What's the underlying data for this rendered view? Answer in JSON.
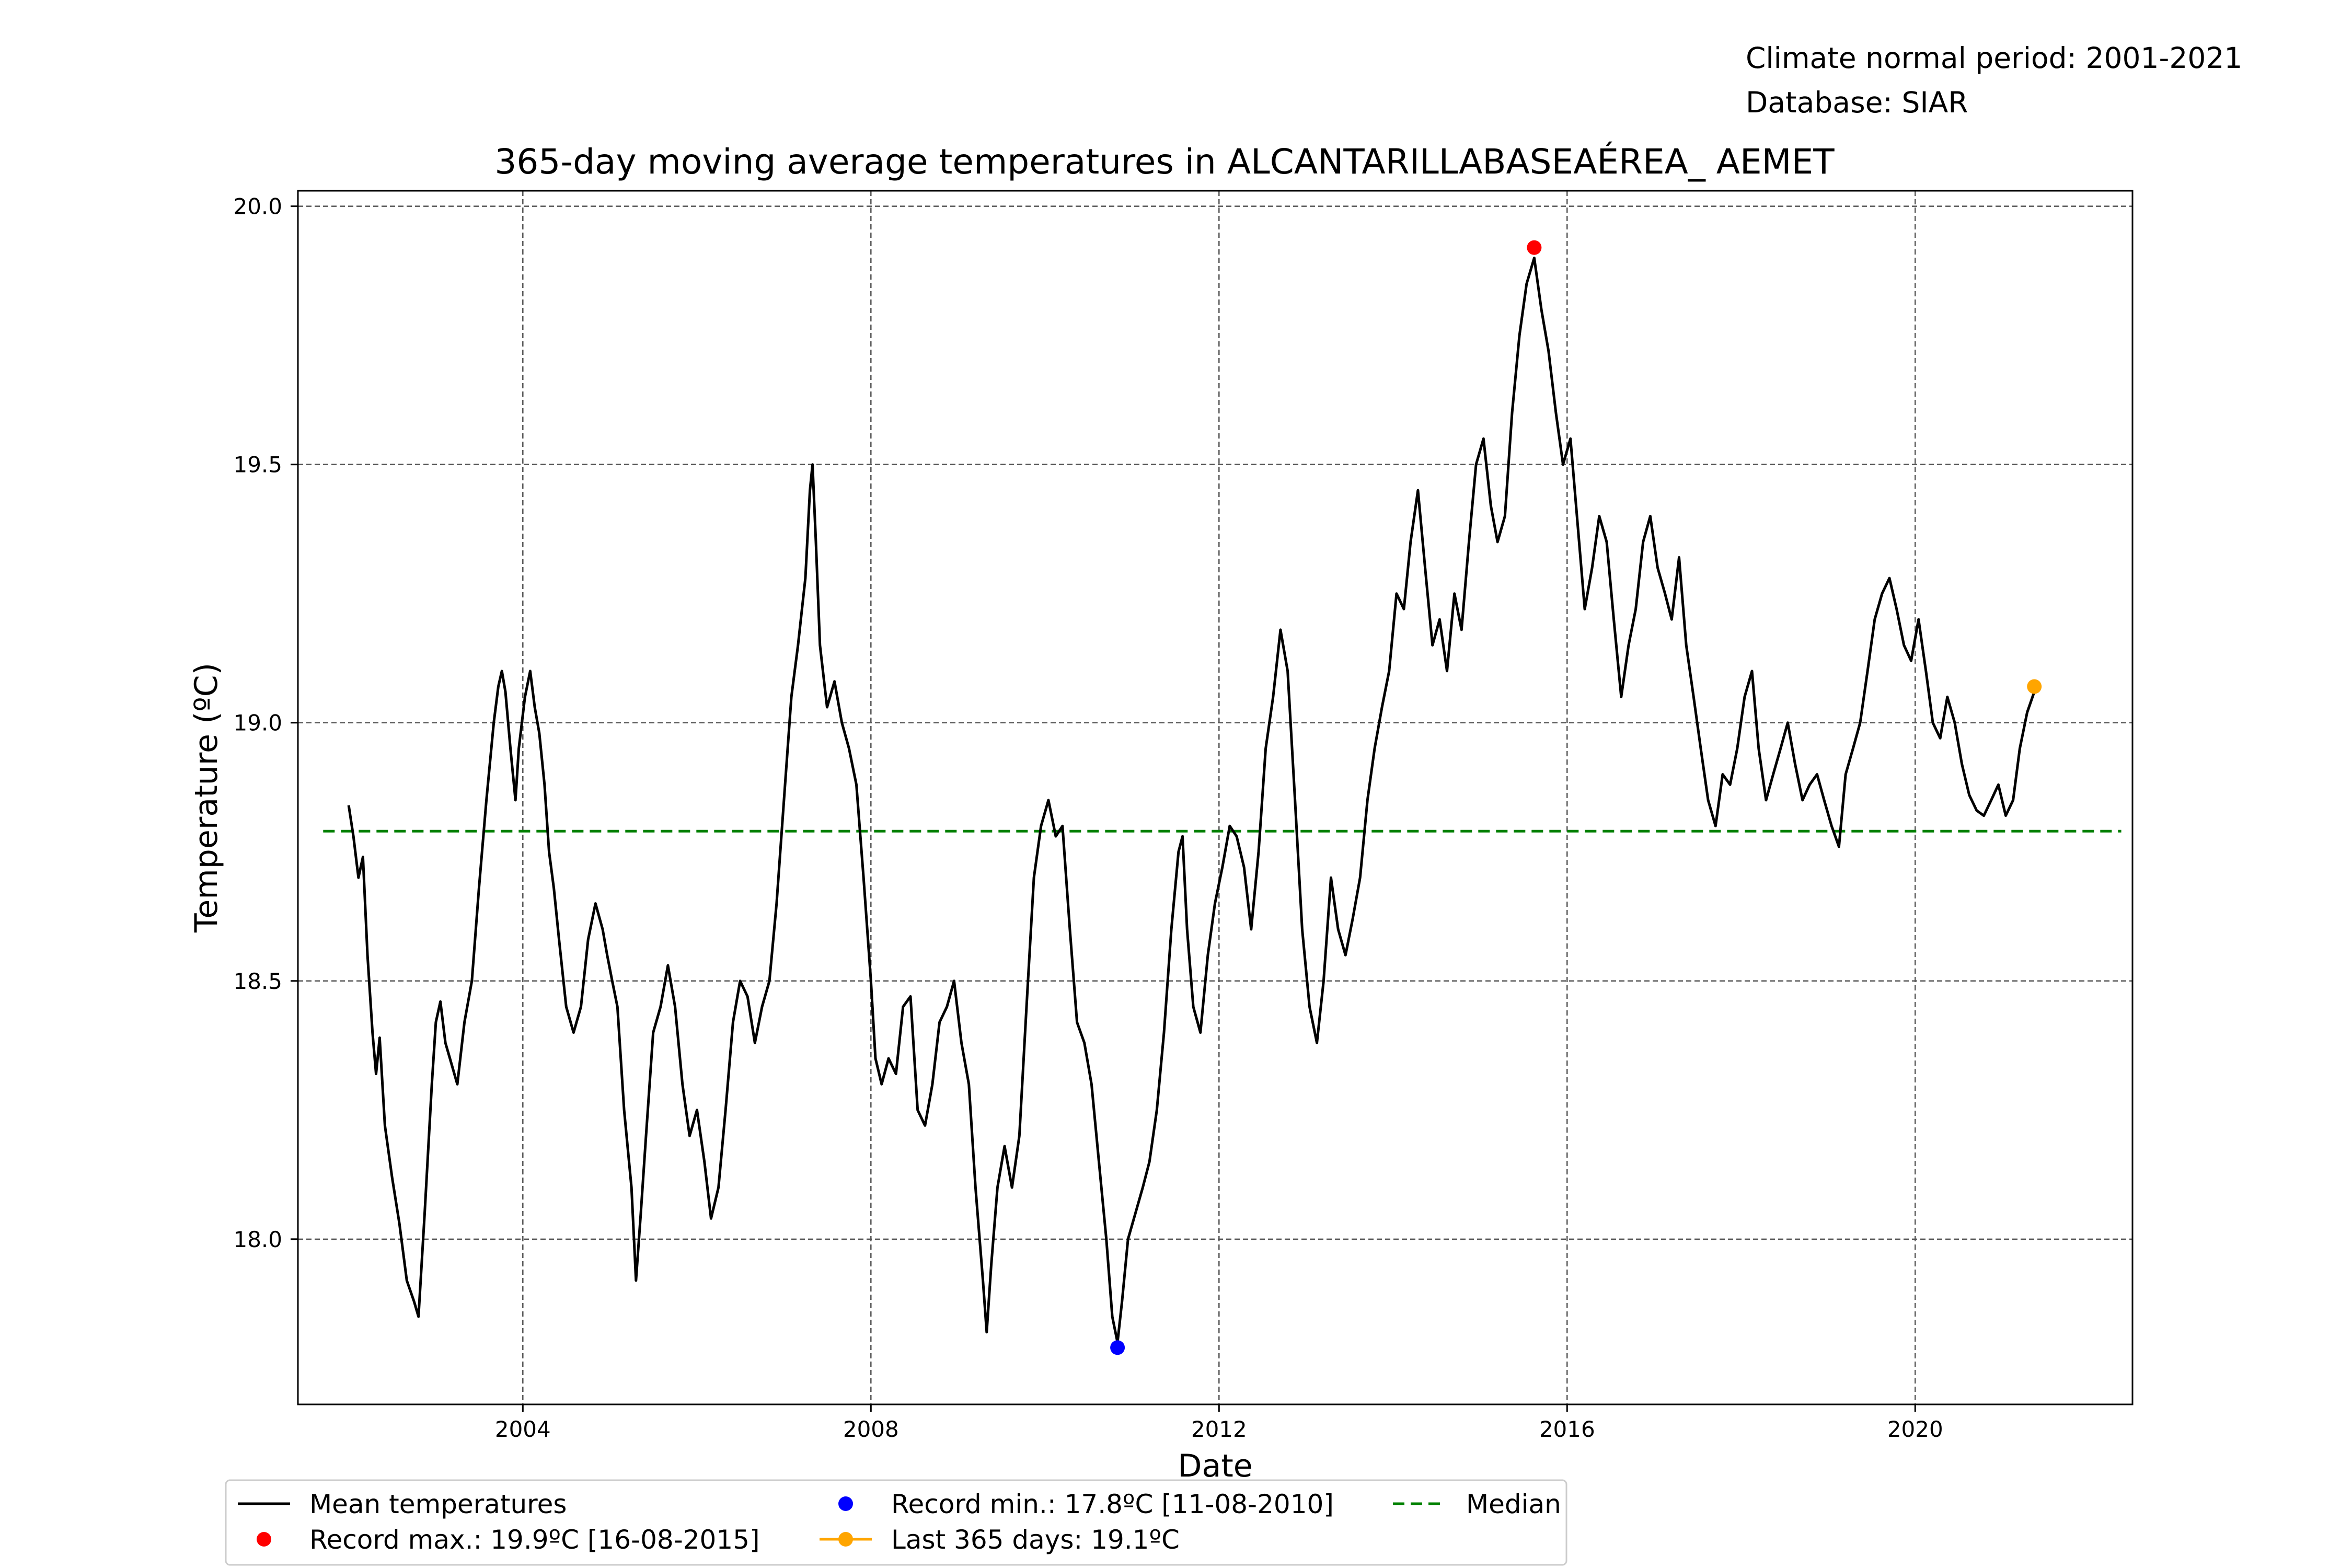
{
  "header": {
    "line1": "Climate normal period: 2001-2021",
    "line2": "Database: SIAR"
  },
  "chart_data": {
    "type": "line",
    "title": "365-day moving average temperatures in ALCANTARILLABASEAÉREA_ AEMET",
    "xlabel": "Date",
    "ylabel": "Temperature (ºC)",
    "xlim": [
      "2001-06-01",
      "2022-07-01"
    ],
    "ylim": [
      17.68,
      20.03
    ],
    "x_ticks": [
      {
        "date": "2004-01-01",
        "label": "2004"
      },
      {
        "date": "2008-01-01",
        "label": "2008"
      },
      {
        "date": "2012-01-01",
        "label": "2012"
      },
      {
        "date": "2016-01-01",
        "label": "2016"
      },
      {
        "date": "2020-01-01",
        "label": "2020"
      }
    ],
    "y_ticks": [
      {
        "value": 18.0,
        "label": "18.0"
      },
      {
        "value": 18.5,
        "label": "18.5"
      },
      {
        "value": 19.0,
        "label": "19.0"
      },
      {
        "value": 19.5,
        "label": "19.5"
      },
      {
        "value": 20.0,
        "label": "20.0"
      }
    ],
    "grid": true,
    "legend_position": "bottom",
    "colors": {
      "mean": "#000000",
      "record_max": "#ff0000",
      "record_min": "#0000ff",
      "last": "#ffa500",
      "median": "#008000",
      "grid": "#555555"
    },
    "series": [
      {
        "name": "Mean temperatures",
        "points": [
          [
            "2001-12-31",
            18.84
          ],
          [
            "2002-01-20",
            18.78
          ],
          [
            "2002-02-10",
            18.7
          ],
          [
            "2002-03-01",
            18.74
          ],
          [
            "2002-03-20",
            18.55
          ],
          [
            "2002-04-10",
            18.4
          ],
          [
            "2002-04-25",
            18.32
          ],
          [
            "2002-05-10",
            18.39
          ],
          [
            "2002-06-01",
            18.22
          ],
          [
            "2002-07-01",
            18.12
          ],
          [
            "2002-08-01",
            18.03
          ],
          [
            "2002-09-01",
            17.92
          ],
          [
            "2002-10-01",
            17.88
          ],
          [
            "2002-10-20",
            17.85
          ],
          [
            "2002-11-15",
            18.05
          ],
          [
            "2002-12-15",
            18.3
          ],
          [
            "2003-01-01",
            18.42
          ],
          [
            "2003-01-20",
            18.46
          ],
          [
            "2003-02-10",
            18.38
          ],
          [
            "2003-03-01",
            18.35
          ],
          [
            "2003-04-01",
            18.3
          ],
          [
            "2003-05-01",
            18.42
          ],
          [
            "2003-06-01",
            18.5
          ],
          [
            "2003-07-01",
            18.68
          ],
          [
            "2003-08-01",
            18.85
          ],
          [
            "2003-09-01",
            19.0
          ],
          [
            "2003-09-20",
            19.07
          ],
          [
            "2003-10-05",
            19.1
          ],
          [
            "2003-10-20",
            19.06
          ],
          [
            "2003-11-10",
            18.95
          ],
          [
            "2003-12-01",
            18.85
          ],
          [
            "2003-12-15",
            18.95
          ],
          [
            "2004-01-10",
            19.05
          ],
          [
            "2004-02-01",
            19.1
          ],
          [
            "2004-02-20",
            19.03
          ],
          [
            "2004-03-10",
            18.98
          ],
          [
            "2004-04-01",
            18.88
          ],
          [
            "2004-04-20",
            18.75
          ],
          [
            "2004-05-10",
            18.68
          ],
          [
            "2004-06-01",
            18.58
          ],
          [
            "2004-07-01",
            18.45
          ],
          [
            "2004-08-01",
            18.4
          ],
          [
            "2004-09-01",
            18.45
          ],
          [
            "2004-10-01",
            18.58
          ],
          [
            "2004-11-01",
            18.65
          ],
          [
            "2004-12-01",
            18.6
          ],
          [
            "2004-12-20",
            18.55
          ],
          [
            "2005-01-10",
            18.5
          ],
          [
            "2005-02-01",
            18.45
          ],
          [
            "2005-03-01",
            18.25
          ],
          [
            "2005-04-01",
            18.1
          ],
          [
            "2005-04-20",
            17.92
          ],
          [
            "2005-05-10",
            18.05
          ],
          [
            "2005-06-01",
            18.2
          ],
          [
            "2005-07-01",
            18.4
          ],
          [
            "2005-08-01",
            18.45
          ],
          [
            "2005-09-01",
            18.53
          ],
          [
            "2005-10-01",
            18.45
          ],
          [
            "2005-11-01",
            18.3
          ],
          [
            "2005-12-01",
            18.2
          ],
          [
            "2006-01-01",
            18.25
          ],
          [
            "2006-02-01",
            18.15
          ],
          [
            "2006-03-01",
            18.04
          ],
          [
            "2006-04-01",
            18.1
          ],
          [
            "2006-05-01",
            18.25
          ],
          [
            "2006-06-01",
            18.42
          ],
          [
            "2006-07-01",
            18.5
          ],
          [
            "2006-08-01",
            18.47
          ],
          [
            "2006-09-01",
            18.38
          ],
          [
            "2006-10-01",
            18.45
          ],
          [
            "2006-11-01",
            18.5
          ],
          [
            "2006-12-01",
            18.65
          ],
          [
            "2007-01-01",
            18.85
          ],
          [
            "2007-02-01",
            19.05
          ],
          [
            "2007-03-01",
            19.15
          ],
          [
            "2007-04-01",
            19.28
          ],
          [
            "2007-04-20",
            19.45
          ],
          [
            "2007-05-01",
            19.5
          ],
          [
            "2007-05-15",
            19.35
          ],
          [
            "2007-06-01",
            19.15
          ],
          [
            "2007-07-01",
            19.03
          ],
          [
            "2007-08-01",
            19.08
          ],
          [
            "2007-09-01",
            19.0
          ],
          [
            "2007-10-01",
            18.95
          ],
          [
            "2007-11-01",
            18.88
          ],
          [
            "2007-12-01",
            18.7
          ],
          [
            "2008-01-01",
            18.5
          ],
          [
            "2008-01-20",
            18.35
          ],
          [
            "2008-02-15",
            18.3
          ],
          [
            "2008-03-15",
            18.35
          ],
          [
            "2008-04-15",
            18.32
          ],
          [
            "2008-05-15",
            18.45
          ],
          [
            "2008-06-15",
            18.47
          ],
          [
            "2008-07-15",
            18.25
          ],
          [
            "2008-08-15",
            18.22
          ],
          [
            "2008-09-15",
            18.3
          ],
          [
            "2008-10-15",
            18.42
          ],
          [
            "2008-11-15",
            18.45
          ],
          [
            "2008-12-15",
            18.5
          ],
          [
            "2009-01-15",
            18.38
          ],
          [
            "2009-02-15",
            18.3
          ],
          [
            "2009-03-15",
            18.1
          ],
          [
            "2009-04-15",
            17.92
          ],
          [
            "2009-05-01",
            17.82
          ],
          [
            "2009-05-20",
            17.95
          ],
          [
            "2009-06-15",
            18.1
          ],
          [
            "2009-07-15",
            18.18
          ],
          [
            "2009-08-15",
            18.1
          ],
          [
            "2009-09-15",
            18.2
          ],
          [
            "2009-10-15",
            18.45
          ],
          [
            "2009-11-15",
            18.7
          ],
          [
            "2009-12-15",
            18.8
          ],
          [
            "2010-01-15",
            18.85
          ],
          [
            "2010-02-15",
            18.78
          ],
          [
            "2010-03-15",
            18.8
          ],
          [
            "2010-04-15",
            18.6
          ],
          [
            "2010-05-15",
            18.42
          ],
          [
            "2010-06-15",
            18.38
          ],
          [
            "2010-07-15",
            18.3
          ],
          [
            "2010-08-15",
            18.15
          ],
          [
            "2010-09-15",
            18.0
          ],
          [
            "2010-10-10",
            17.85
          ],
          [
            "2010-11-01",
            17.8
          ],
          [
            "2010-11-20",
            17.88
          ],
          [
            "2010-12-15",
            18.0
          ],
          [
            "2011-01-15",
            18.05
          ],
          [
            "2011-02-15",
            18.1
          ],
          [
            "2011-03-15",
            18.15
          ],
          [
            "2011-04-15",
            18.25
          ],
          [
            "2011-05-15",
            18.4
          ],
          [
            "2011-06-15",
            18.6
          ],
          [
            "2011-07-15",
            18.75
          ],
          [
            "2011-08-01",
            18.78
          ],
          [
            "2011-08-20",
            18.6
          ],
          [
            "2011-09-15",
            18.45
          ],
          [
            "2011-10-15",
            18.4
          ],
          [
            "2011-11-15",
            18.55
          ],
          [
            "2011-12-15",
            18.65
          ],
          [
            "2012-01-15",
            18.72
          ],
          [
            "2012-02-15",
            18.8
          ],
          [
            "2012-03-15",
            18.78
          ],
          [
            "2012-04-15",
            18.72
          ],
          [
            "2012-05-15",
            18.6
          ],
          [
            "2012-06-15",
            18.75
          ],
          [
            "2012-07-15",
            18.95
          ],
          [
            "2012-08-15",
            19.05
          ],
          [
            "2012-09-15",
            19.18
          ],
          [
            "2012-10-15",
            19.1
          ],
          [
            "2012-11-15",
            18.85
          ],
          [
            "2012-12-15",
            18.6
          ],
          [
            "2013-01-15",
            18.45
          ],
          [
            "2013-02-15",
            18.38
          ],
          [
            "2013-03-15",
            18.5
          ],
          [
            "2013-04-15",
            18.7
          ],
          [
            "2013-05-15",
            18.6
          ],
          [
            "2013-06-15",
            18.55
          ],
          [
            "2013-07-15",
            18.62
          ],
          [
            "2013-08-15",
            18.7
          ],
          [
            "2013-09-15",
            18.85
          ],
          [
            "2013-10-15",
            18.95
          ],
          [
            "2013-11-15",
            19.03
          ],
          [
            "2013-12-15",
            19.1
          ],
          [
            "2014-01-15",
            19.25
          ],
          [
            "2014-02-15",
            19.22
          ],
          [
            "2014-03-15",
            19.35
          ],
          [
            "2014-04-15",
            19.45
          ],
          [
            "2014-05-15",
            19.3
          ],
          [
            "2014-06-15",
            19.15
          ],
          [
            "2014-07-15",
            19.2
          ],
          [
            "2014-08-15",
            19.1
          ],
          [
            "2014-09-15",
            19.25
          ],
          [
            "2014-10-15",
            19.18
          ],
          [
            "2014-11-15",
            19.35
          ],
          [
            "2014-12-15",
            19.5
          ],
          [
            "2015-01-15",
            19.55
          ],
          [
            "2015-02-15",
            19.42
          ],
          [
            "2015-03-15",
            19.35
          ],
          [
            "2015-04-15",
            19.4
          ],
          [
            "2015-05-15",
            19.6
          ],
          [
            "2015-06-15",
            19.75
          ],
          [
            "2015-07-15",
            19.85
          ],
          [
            "2015-08-16",
            19.9
          ],
          [
            "2015-09-15",
            19.8
          ],
          [
            "2015-10-15",
            19.72
          ],
          [
            "2015-11-15",
            19.6
          ],
          [
            "2015-12-15",
            19.5
          ],
          [
            "2016-01-15",
            19.55
          ],
          [
            "2016-02-15",
            19.38
          ],
          [
            "2016-03-15",
            19.22
          ],
          [
            "2016-04-15",
            19.3
          ],
          [
            "2016-05-15",
            19.4
          ],
          [
            "2016-06-15",
            19.35
          ],
          [
            "2016-07-15",
            19.2
          ],
          [
            "2016-08-15",
            19.05
          ],
          [
            "2016-09-15",
            19.15
          ],
          [
            "2016-10-15",
            19.22
          ],
          [
            "2016-11-15",
            19.35
          ],
          [
            "2016-12-15",
            19.4
          ],
          [
            "2017-01-15",
            19.3
          ],
          [
            "2017-02-15",
            19.25
          ],
          [
            "2017-03-15",
            19.2
          ],
          [
            "2017-04-15",
            19.32
          ],
          [
            "2017-05-15",
            19.15
          ],
          [
            "2017-06-15",
            19.05
          ],
          [
            "2017-07-15",
            18.95
          ],
          [
            "2017-08-15",
            18.85
          ],
          [
            "2017-09-15",
            18.8
          ],
          [
            "2017-10-15",
            18.9
          ],
          [
            "2017-11-15",
            18.88
          ],
          [
            "2017-12-15",
            18.95
          ],
          [
            "2018-01-15",
            19.05
          ],
          [
            "2018-02-15",
            19.1
          ],
          [
            "2018-03-15",
            18.95
          ],
          [
            "2018-04-15",
            18.85
          ],
          [
            "2018-05-15",
            18.9
          ],
          [
            "2018-06-15",
            18.95
          ],
          [
            "2018-07-15",
            19.0
          ],
          [
            "2018-08-15",
            18.92
          ],
          [
            "2018-09-15",
            18.85
          ],
          [
            "2018-10-15",
            18.88
          ],
          [
            "2018-11-15",
            18.9
          ],
          [
            "2018-12-15",
            18.85
          ],
          [
            "2019-01-15",
            18.8
          ],
          [
            "2019-02-15",
            18.76
          ],
          [
            "2019-03-15",
            18.9
          ],
          [
            "2019-04-15",
            18.95
          ],
          [
            "2019-05-15",
            19.0
          ],
          [
            "2019-06-15",
            19.1
          ],
          [
            "2019-07-15",
            19.2
          ],
          [
            "2019-08-15",
            19.25
          ],
          [
            "2019-09-15",
            19.28
          ],
          [
            "2019-10-15",
            19.22
          ],
          [
            "2019-11-15",
            19.15
          ],
          [
            "2019-12-15",
            19.12
          ],
          [
            "2020-01-15",
            19.2
          ],
          [
            "2020-02-15",
            19.1
          ],
          [
            "2020-03-15",
            19.0
          ],
          [
            "2020-04-15",
            18.97
          ],
          [
            "2020-05-15",
            19.05
          ],
          [
            "2020-06-15",
            19.0
          ],
          [
            "2020-07-15",
            18.92
          ],
          [
            "2020-08-15",
            18.86
          ],
          [
            "2020-09-15",
            18.83
          ],
          [
            "2020-10-15",
            18.82
          ],
          [
            "2020-11-15",
            18.85
          ],
          [
            "2020-12-15",
            18.88
          ],
          [
            "2021-01-15",
            18.82
          ],
          [
            "2021-02-15",
            18.85
          ],
          [
            "2021-03-15",
            18.95
          ],
          [
            "2021-04-15",
            19.02
          ],
          [
            "2021-05-15",
            19.06
          ]
        ]
      },
      {
        "name": "Median",
        "value": 18.79,
        "x_range": [
          "2001-09-15",
          "2022-05-15"
        ]
      }
    ],
    "markers": [
      {
        "name": "Record max.: 19.9ºC [16-08-2015]",
        "date": "2015-08-16",
        "value": 19.92
      },
      {
        "name": "Record min.: 17.8ºC [11-08-2010]",
        "date": "2010-11-01",
        "value": 17.79
      },
      {
        "name": "Last 365 days: 19.1ºC",
        "date": "2021-05-15",
        "value": 19.07
      }
    ],
    "legend": {
      "mean": "Mean temperatures",
      "record_max": "Record max.: 19.9ºC [16-08-2015]",
      "record_min": "Record min.: 17.8ºC [11-08-2010]",
      "last": "Last 365 days: 19.1ºC",
      "median": "Median"
    }
  }
}
